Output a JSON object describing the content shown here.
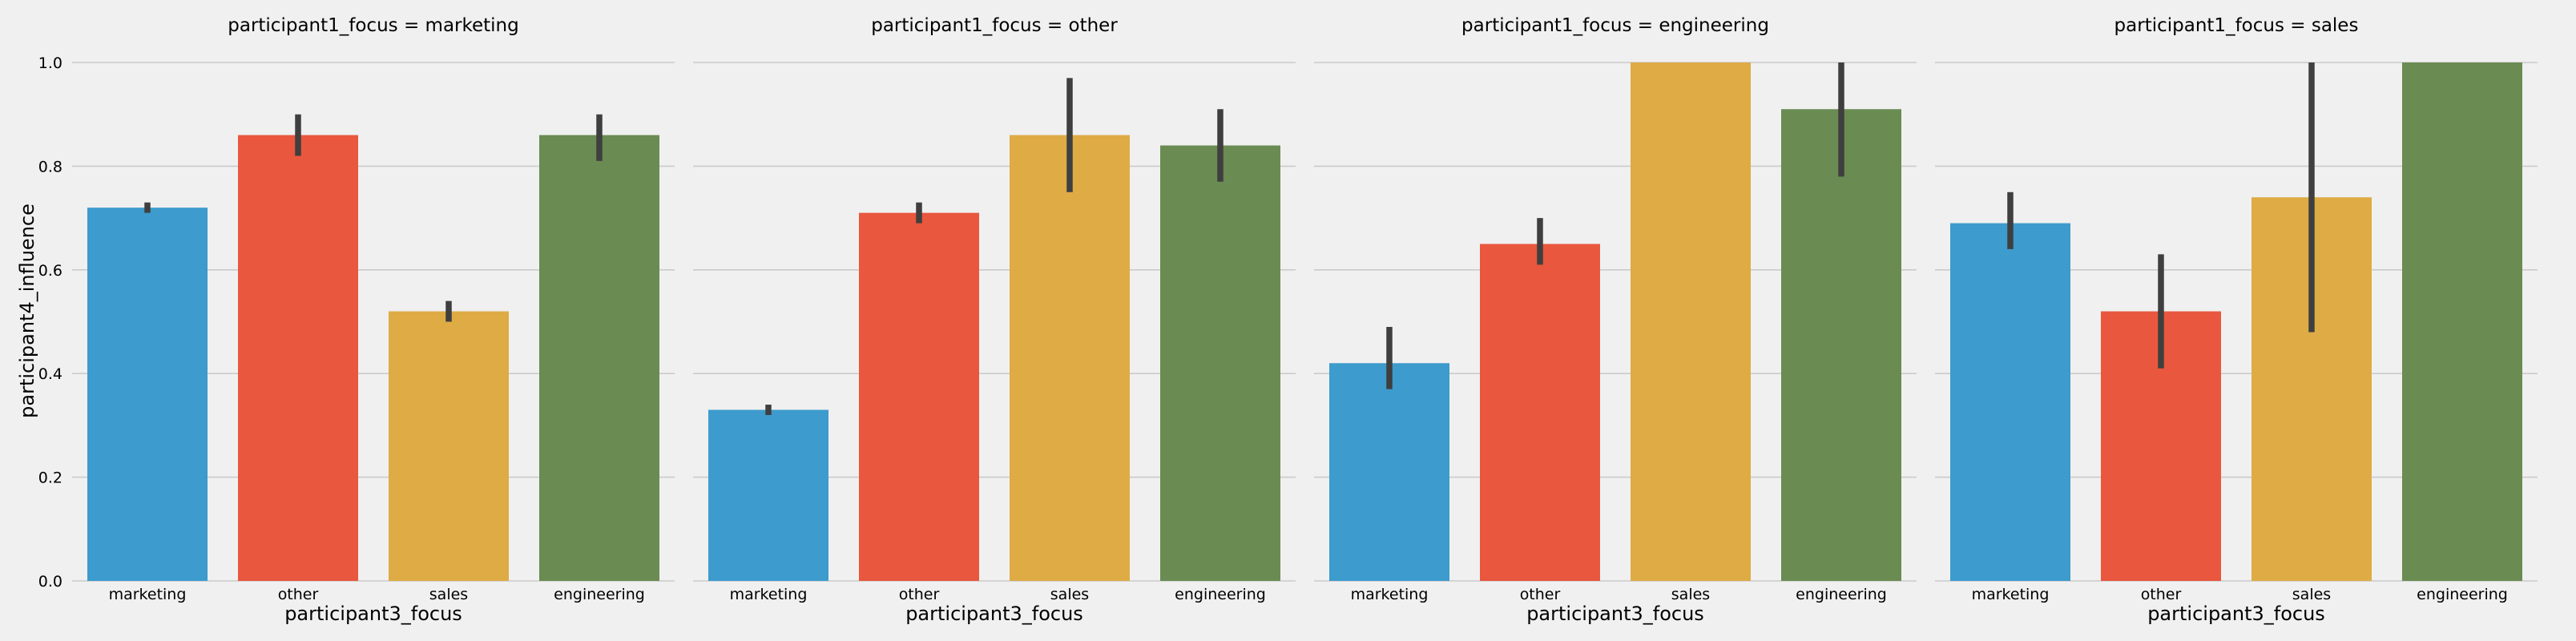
{
  "chart_data": {
    "type": "bar",
    "xlabel": "participant3_focus",
    "ylabel": "participant4_influence",
    "ylim": [
      0,
      1.0
    ],
    "yticks": [
      "0.0",
      "0.2",
      "0.4",
      "0.6",
      "0.8",
      "1.0"
    ],
    "ytick_values": [
      0,
      0.2,
      0.4,
      0.6,
      0.8,
      1.0
    ],
    "grid": true,
    "colors": [
      "#3d9bcd",
      "#e9573e",
      "#deab45",
      "#6a8b52"
    ],
    "categories": [
      "marketing",
      "other",
      "sales",
      "engineering"
    ],
    "panels": [
      {
        "title": "participant1_focus = marketing",
        "values": [
          0.72,
          0.86,
          0.52,
          0.86
        ],
        "errors": [
          [
            0.71,
            0.73
          ],
          [
            0.82,
            0.9
          ],
          [
            0.5,
            0.54
          ],
          [
            0.81,
            0.9
          ]
        ]
      },
      {
        "title": "participant1_focus = other",
        "values": [
          0.33,
          0.71,
          0.86,
          0.84
        ],
        "errors": [
          [
            0.32,
            0.34
          ],
          [
            0.69,
            0.73
          ],
          [
            0.75,
            0.97
          ],
          [
            0.77,
            0.91
          ]
        ]
      },
      {
        "title": "participant1_focus = engineering",
        "values": [
          0.42,
          0.65,
          1.0,
          0.91
        ],
        "errors": [
          [
            0.37,
            0.49
          ],
          [
            0.61,
            0.7
          ],
          [
            1.0,
            1.0
          ],
          [
            0.78,
            1.0
          ]
        ]
      },
      {
        "title": "participant1_focus = sales",
        "values": [
          0.69,
          0.52,
          0.74,
          1.0
        ],
        "errors": [
          [
            0.64,
            0.75
          ],
          [
            0.41,
            0.63
          ],
          [
            0.48,
            1.0
          ],
          [
            1.0,
            1.0
          ]
        ]
      }
    ]
  }
}
